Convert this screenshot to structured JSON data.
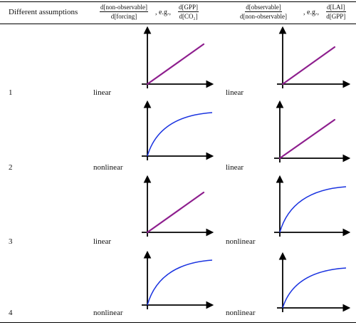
{
  "header": {
    "col1": "Different assumptions",
    "col2": {
      "num": "d[non-observable]",
      "den": "d[forcing]",
      "eg": ", e.g.,",
      "ex_num": "d[GPP]",
      "ex_den": "d[CO₂]"
    },
    "col3": {
      "num": "d[observable]",
      "den": "d[non-observable]",
      "eg": ", e.g.,",
      "ex_num": "d[LAI]",
      "ex_den": "d[GPP]"
    }
  },
  "rows": [
    {
      "number": "1",
      "first": "linear",
      "second": "linear"
    },
    {
      "number": "2",
      "first": "nonlinear",
      "second": "linear"
    },
    {
      "number": "3",
      "first": "linear",
      "second": "nonlinear"
    },
    {
      "number": "4",
      "first": "nonlinear",
      "second": "nonlinear"
    }
  ],
  "colors": {
    "linear": "#8e1f8e",
    "nonlinear": "#1a33e0",
    "axis": "#000000"
  }
}
